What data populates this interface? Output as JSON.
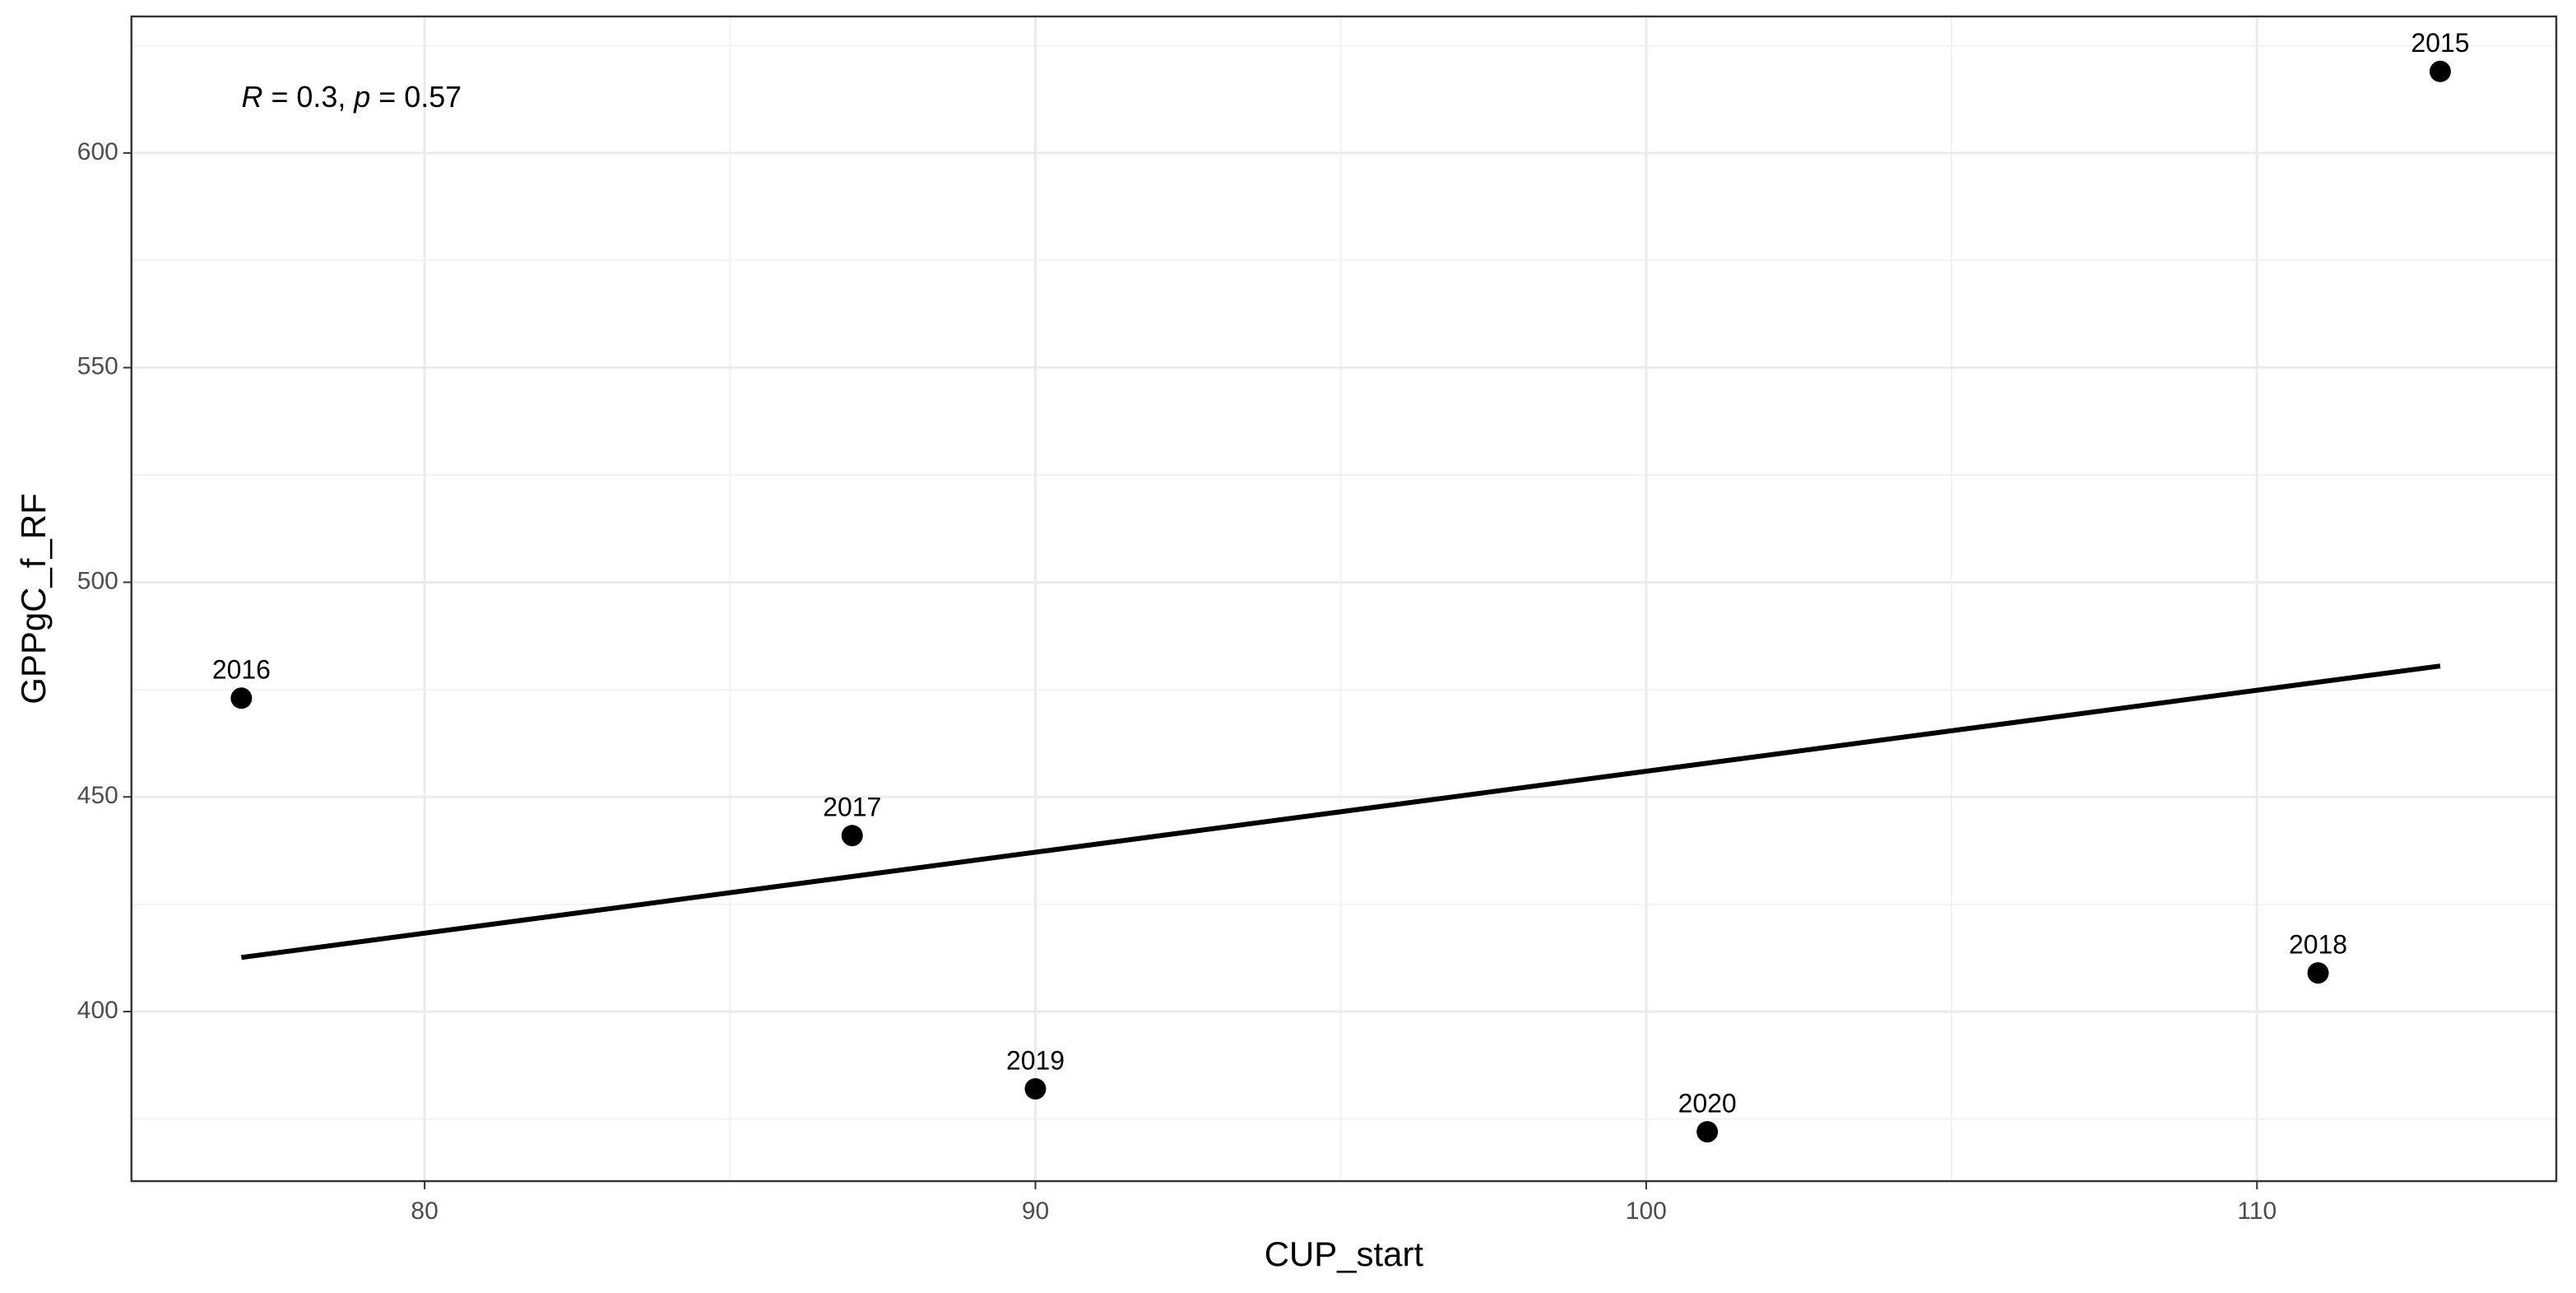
{
  "chart_data": {
    "type": "scatter",
    "x_label": "CUP_start",
    "y_label": "GPPgC_f_RF",
    "annotation": [
      "R",
      " = 0.3, ",
      "p",
      " = 0.57"
    ],
    "x": [
      113,
      77,
      87,
      111,
      90,
      101
    ],
    "y": [
      619,
      473,
      441,
      409,
      382,
      372
    ],
    "point_labels": [
      "2015",
      "2016",
      "2017",
      "2018",
      "2019",
      "2020"
    ],
    "color": "#000000",
    "fit": {
      "x": [
        77,
        113
      ],
      "y": [
        412.6,
        480.5
      ]
    },
    "xlim": [
      75.2,
      114.9
    ],
    "ylim": [
      360.5,
      631.8
    ],
    "xticks": [
      80,
      90,
      100,
      110
    ],
    "yticks": [
      400,
      450,
      500,
      550,
      600
    ],
    "minor_xticks": [
      85,
      95,
      105
    ],
    "minor_yticks": [
      375,
      425,
      475,
      525,
      575,
      625
    ],
    "grid": true
  }
}
